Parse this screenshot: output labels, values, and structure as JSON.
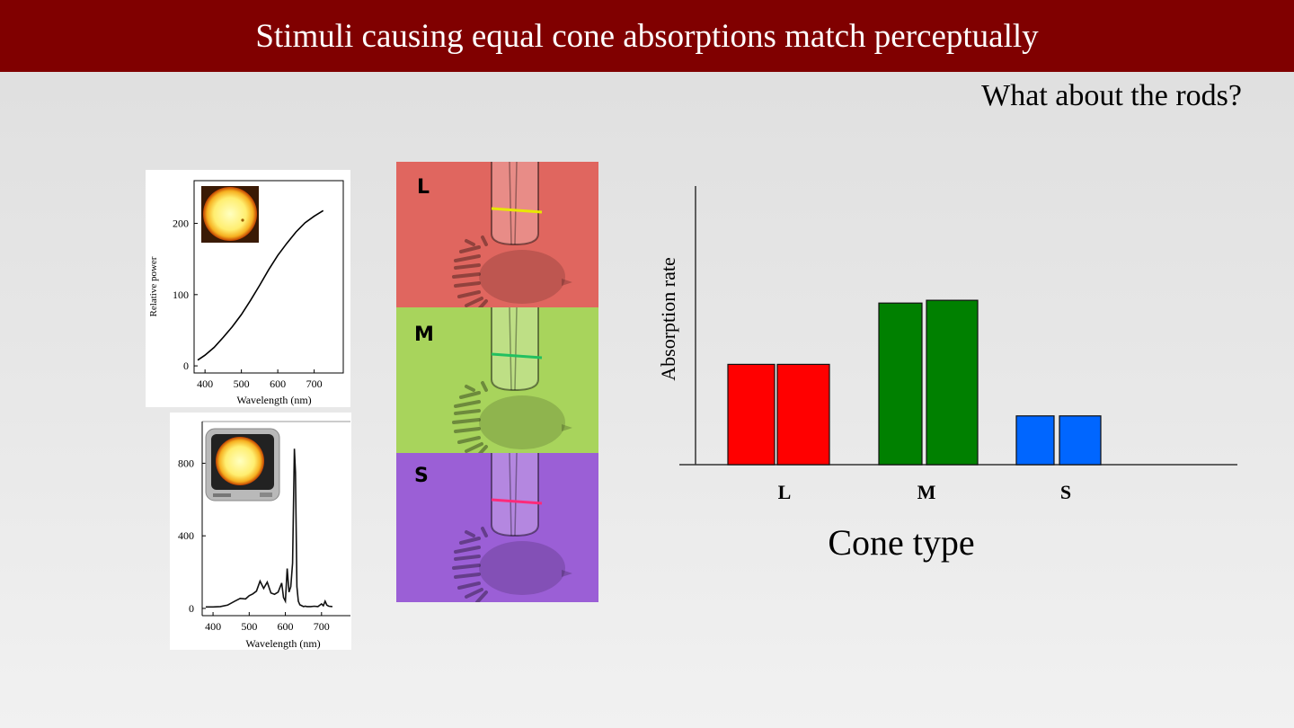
{
  "slide": {
    "title": "Stimuli causing equal cone absorptions match perceptually",
    "subtitle": "What about the rods?"
  },
  "sun_plot": {
    "ylabel": "Relative power",
    "xlabel": "Wavelength (nm)",
    "yticks": [
      "0",
      "100",
      "200"
    ],
    "xticks": [
      "400",
      "500",
      "600",
      "700"
    ]
  },
  "tv_plot": {
    "xlabel": "Wavelength (nm)",
    "yticks": [
      "0",
      "400",
      "800"
    ],
    "xticks": [
      "400",
      "500",
      "600",
      "700"
    ]
  },
  "cone_photos": {
    "labels": [
      "L",
      "M",
      "S"
    ],
    "colors": [
      "#e0665f",
      "#a8d45c",
      "#9b5fd6"
    ],
    "stripe_colors": [
      "#e8e800",
      "#22c060",
      "#ff2a7a"
    ]
  },
  "chart_data": [
    {
      "type": "line",
      "xlabel": "Wavelength (nm)",
      "ylabel": "Relative power",
      "xlim": [
        370,
        780
      ],
      "ylim": [
        -10,
        260
      ],
      "x": [
        380,
        400,
        425,
        450,
        475,
        500,
        525,
        550,
        575,
        600,
        625,
        650,
        675,
        700,
        725
      ],
      "y": [
        8,
        15,
        26,
        40,
        55,
        72,
        92,
        113,
        135,
        155,
        172,
        188,
        201,
        210,
        218
      ]
    },
    {
      "type": "line",
      "xlabel": "Wavelength (nm)",
      "ylim": [
        -40,
        1030
      ],
      "xlim": [
        370,
        780
      ],
      "x": [
        380,
        400,
        420,
        440,
        460,
        475,
        490,
        500,
        510,
        520,
        530,
        540,
        550,
        560,
        570,
        580,
        590,
        595,
        600,
        605,
        610,
        615,
        620,
        625,
        628,
        632,
        636,
        640,
        645,
        650,
        655,
        660,
        670,
        680,
        690,
        700,
        705,
        710,
        715,
        720,
        730
      ],
      "y": [
        8,
        8,
        10,
        18,
        40,
        55,
        52,
        70,
        80,
        95,
        150,
        110,
        145,
        85,
        78,
        90,
        140,
        60,
        40,
        220,
        90,
        120,
        250,
        880,
        750,
        120,
        40,
        20,
        15,
        10,
        12,
        10,
        10,
        12,
        10,
        25,
        15,
        40,
        18,
        12,
        10
      ]
    },
    {
      "type": "bar",
      "xlabel": "Cone type",
      "ylabel": "Absorption rate",
      "categories": [
        "L",
        "M",
        "S"
      ],
      "series": [
        {
          "values": [
            3.6,
            5.8,
            1.75
          ]
        },
        {
          "values": [
            3.6,
            5.9,
            1.75
          ]
        }
      ],
      "colors": [
        "#ff0000",
        "#008000",
        "#0066ff"
      ],
      "ylim": [
        0,
        10
      ]
    }
  ]
}
